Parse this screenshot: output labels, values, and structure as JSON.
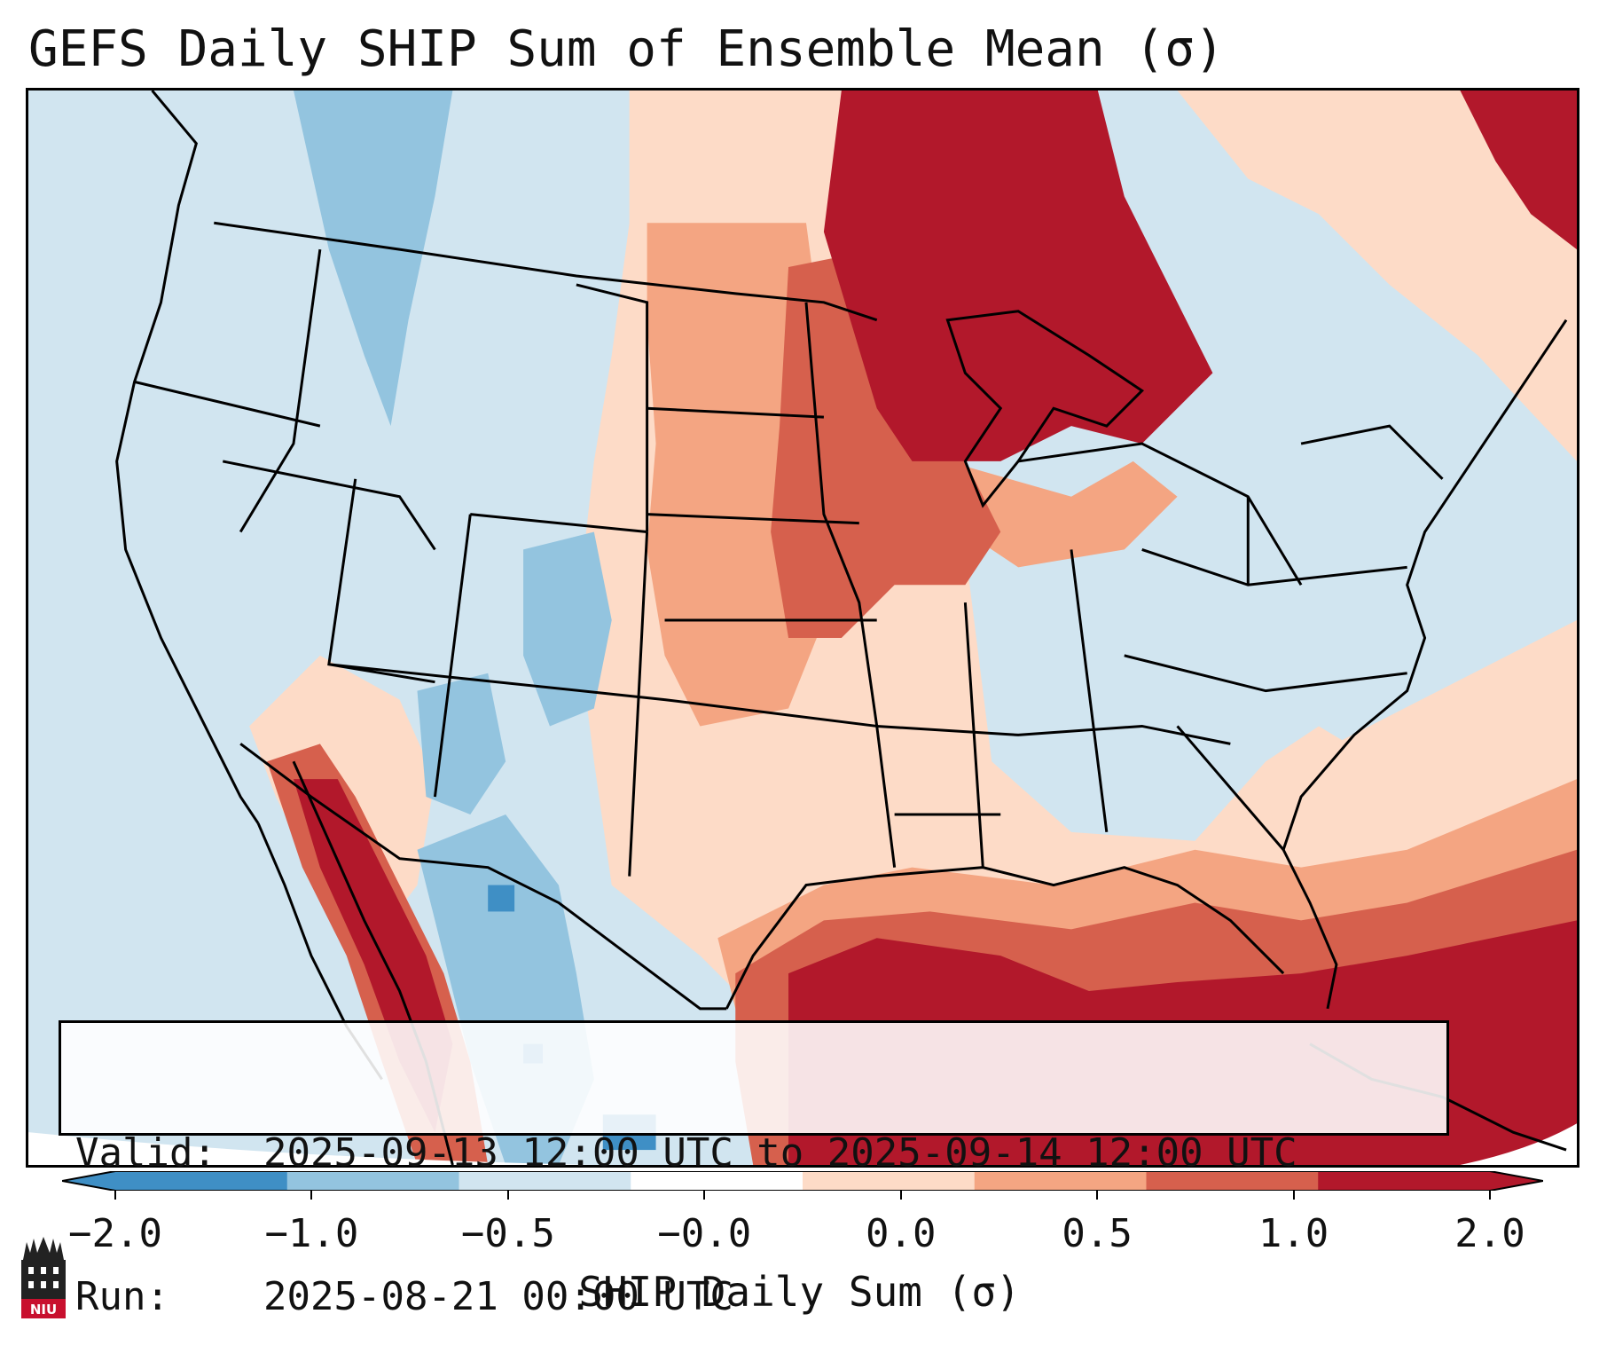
{
  "title": "GEFS Daily SHIP Sum of Ensemble Mean (σ)",
  "info": {
    "valid_label": "Valid:",
    "valid_value": "2025-09-13 12:00 UTC to 2025-09-14 12:00 UTC",
    "run_label": "Run:",
    "run_value": "2025-08-21 00:00 UTC"
  },
  "colorbar": {
    "label": "SHIP Daily Sum (σ)",
    "ticks": [
      "−2.0",
      "−1.0",
      "−0.5",
      "−0.0",
      "0.0",
      "0.5",
      "1.0",
      "2.0"
    ],
    "colors": [
      "#3f8fc5",
      "#93c4df",
      "#d1e5f0",
      "#ffffff",
      "#fddbc7",
      "#f4a582",
      "#d6604d",
      "#b2182b"
    ],
    "extend": "both"
  },
  "logo": {
    "text": "NIU"
  },
  "palette": {
    "deep_blue": "#3f8fc5",
    "mid_blue": "#93c4df",
    "light_blue": "#d1e5f0",
    "light_pink": "#fddbc7",
    "salmon": "#f4a582",
    "red": "#d6604d",
    "dark_red": "#b2182b"
  }
}
